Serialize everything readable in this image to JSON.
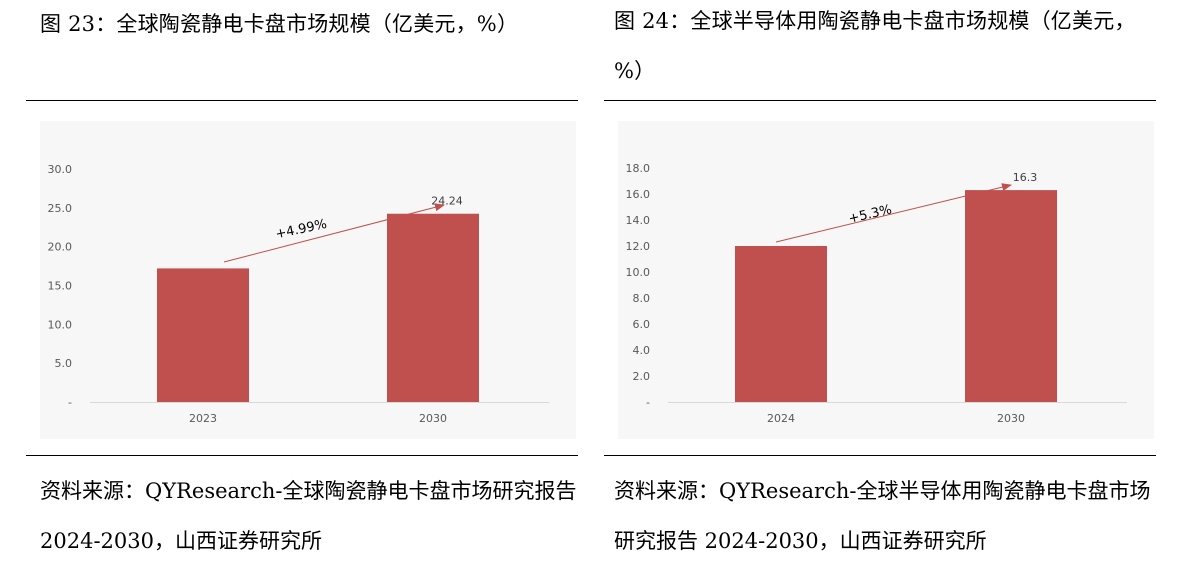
{
  "charts": [
    {
      "title": "图 23：全球陶瓷静电卡盘市场规模（亿美元，%）",
      "source": "资料来源：QYResearch-全球陶瓷静电卡盘市场研究报告 2024-2030，山西证券研究所",
      "chart_data": {
        "type": "bar",
        "categories": [
          "2023",
          "2030"
        ],
        "values": [
          17.2,
          24.24
        ],
        "data_labels": [
          "",
          "24.24"
        ],
        "ylim": [
          0,
          30
        ],
        "yticks": [
          "-",
          "5.0",
          "10.0",
          "15.0",
          "20.0",
          "25.0",
          "30.0"
        ],
        "annotation": "+4.99%",
        "bar_color": "#c0504d",
        "arrow_color": "#c0504d",
        "grid": false
      }
    },
    {
      "title": "图 24：全球半导体用陶瓷静电卡盘市场规模（亿美元，%）",
      "source": "资料来源：QYResearch-全球半导体用陶瓷静电卡盘市场研究报告 2024-2030，山西证券研究所",
      "chart_data": {
        "type": "bar",
        "categories": [
          "2024",
          "2030"
        ],
        "values": [
          12.0,
          16.3
        ],
        "data_labels": [
          "",
          "16.3"
        ],
        "ylim": [
          0,
          18
        ],
        "yticks": [
          "-",
          "2.0",
          "4.0",
          "6.0",
          "8.0",
          "10.0",
          "12.0",
          "14.0",
          "16.0",
          "18.0"
        ],
        "annotation": "+5.3%",
        "bar_color": "#c0504d",
        "arrow_color": "#c0504d",
        "grid": false
      }
    }
  ]
}
